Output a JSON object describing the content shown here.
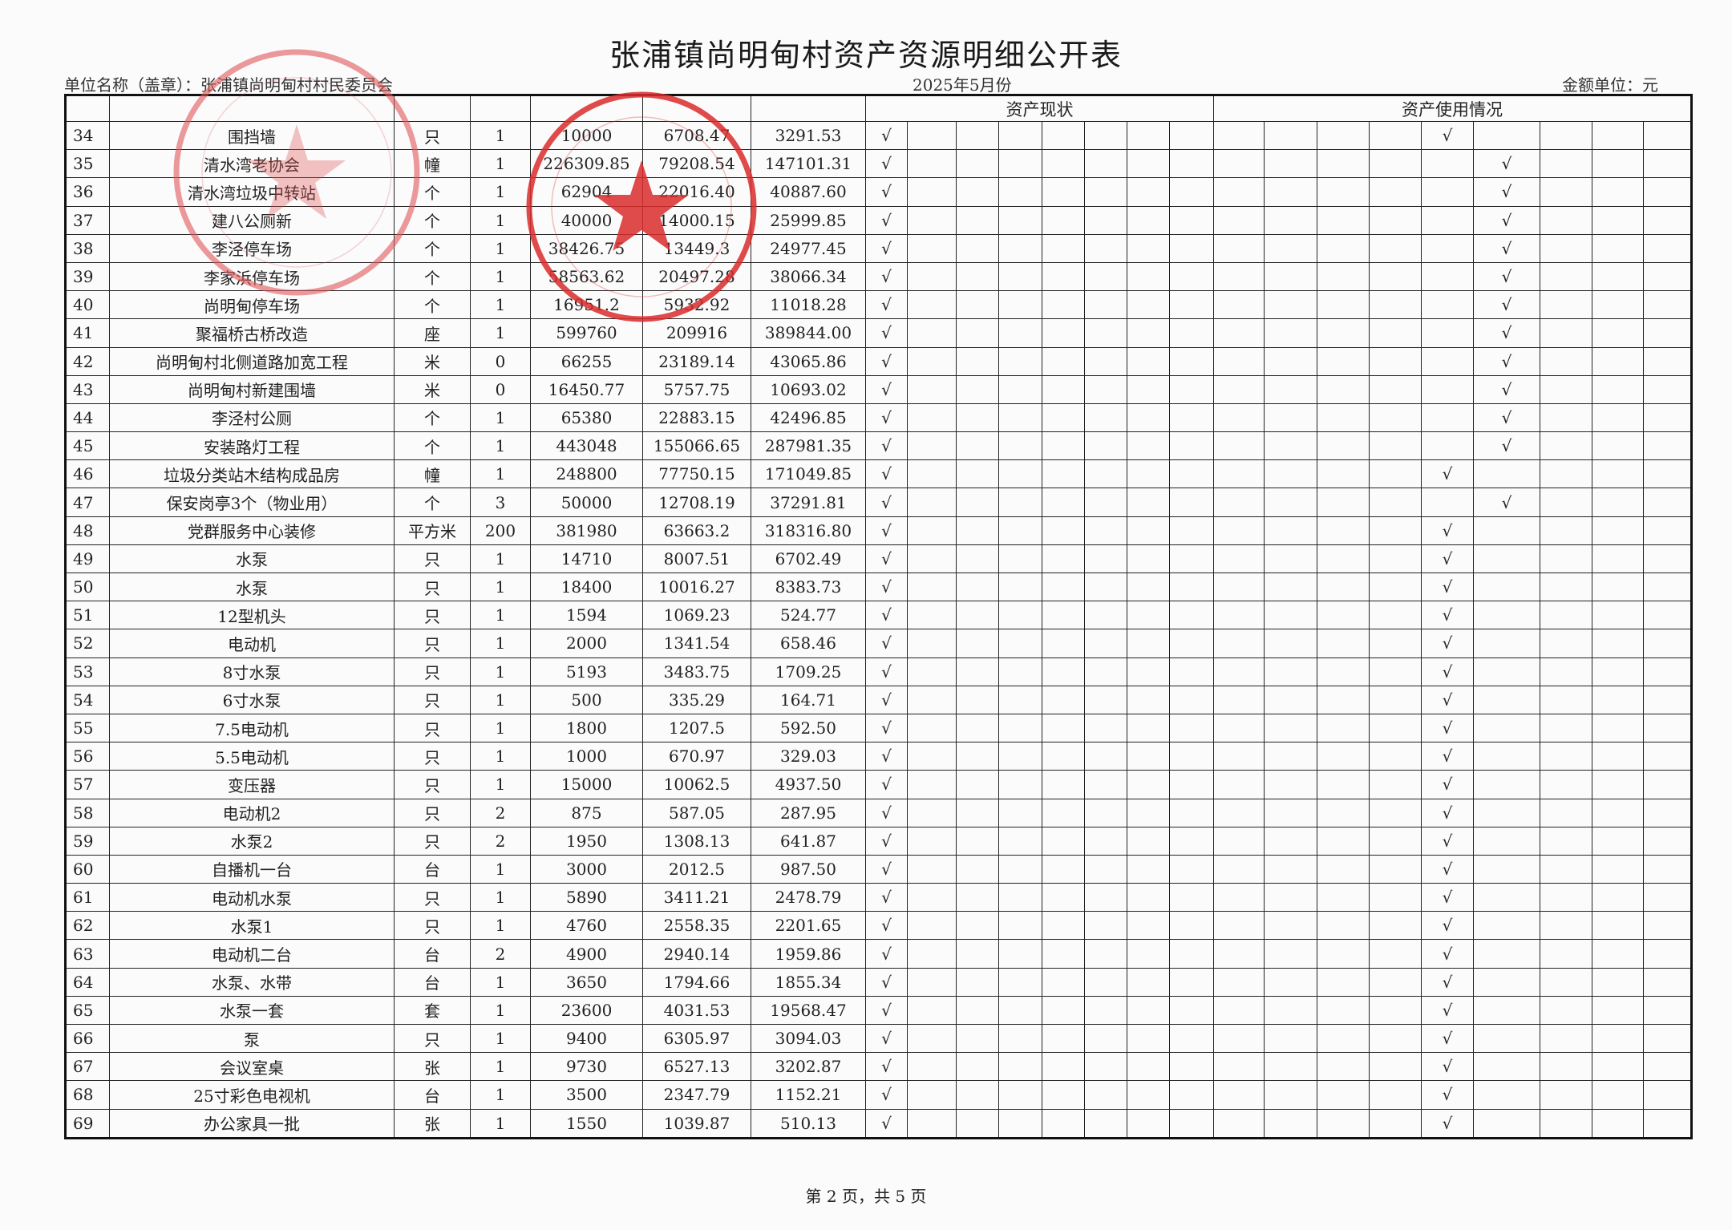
{
  "document": {
    "title": "张浦镇尚明甸村资产资源明细公开表",
    "unit_label": "单位名称（盖章）：张浦镇尚明甸村村民委员会",
    "period": "2025年5月份",
    "currency_unit": "金额单位：元",
    "footer": "第 2 页，共 5 页"
  },
  "table": {
    "group_headers": {
      "status": "资产现状",
      "usage": "资产使用情况"
    },
    "check_mark": "√",
    "status_columns": 8,
    "usage_columns": 9,
    "rows": [
      {
        "no": "34",
        "name": "围挡墙",
        "unit": "只",
        "qty": "1",
        "original": "10000",
        "depreciation": "6708.47",
        "net": "3291.53",
        "status_col": 0,
        "usage_col": 4
      },
      {
        "no": "35",
        "name": "清水湾老协会",
        "unit": "幢",
        "qty": "1",
        "original": "226309.85",
        "depreciation": "79208.54",
        "net": "147101.31",
        "status_col": 0,
        "usage_col": 5
      },
      {
        "no": "36",
        "name": "清水湾垃圾中转站",
        "unit": "个",
        "qty": "1",
        "original": "62904",
        "depreciation": "22016.40",
        "net": "40887.60",
        "status_col": 0,
        "usage_col": 5
      },
      {
        "no": "37",
        "name": "建八公厕新",
        "unit": "个",
        "qty": "1",
        "original": "40000",
        "depreciation": "14000.15",
        "net": "25999.85",
        "status_col": 0,
        "usage_col": 5
      },
      {
        "no": "38",
        "name": "李泾停车场",
        "unit": "个",
        "qty": "1",
        "original": "38426.75",
        "depreciation": "13449.3",
        "net": "24977.45",
        "status_col": 0,
        "usage_col": 5
      },
      {
        "no": "39",
        "name": "李家浜停车场",
        "unit": "个",
        "qty": "1",
        "original": "58563.62",
        "depreciation": "20497.28",
        "net": "38066.34",
        "status_col": 0,
        "usage_col": 5
      },
      {
        "no": "40",
        "name": "尚明甸停车场",
        "unit": "个",
        "qty": "1",
        "original": "16951.2",
        "depreciation": "5932.92",
        "net": "11018.28",
        "status_col": 0,
        "usage_col": 5
      },
      {
        "no": "41",
        "name": "聚福桥古桥改造",
        "unit": "座",
        "qty": "1",
        "original": "599760",
        "depreciation": "209916",
        "net": "389844.00",
        "status_col": 0,
        "usage_col": 5
      },
      {
        "no": "42",
        "name": "尚明甸村北侧道路加宽工程",
        "unit": "米",
        "qty": "0",
        "original": "66255",
        "depreciation": "23189.14",
        "net": "43065.86",
        "status_col": 0,
        "usage_col": 5
      },
      {
        "no": "43",
        "name": "尚明甸村新建围墙",
        "unit": "米",
        "qty": "0",
        "original": "16450.77",
        "depreciation": "5757.75",
        "net": "10693.02",
        "status_col": 0,
        "usage_col": 5
      },
      {
        "no": "44",
        "name": "李泾村公厕",
        "unit": "个",
        "qty": "1",
        "original": "65380",
        "depreciation": "22883.15",
        "net": "42496.85",
        "status_col": 0,
        "usage_col": 5
      },
      {
        "no": "45",
        "name": "安装路灯工程",
        "unit": "个",
        "qty": "1",
        "original": "443048",
        "depreciation": "155066.65",
        "net": "287981.35",
        "status_col": 0,
        "usage_col": 5
      },
      {
        "no": "46",
        "name": "垃圾分类站木结构成品房",
        "unit": "幢",
        "qty": "1",
        "original": "248800",
        "depreciation": "77750.15",
        "net": "171049.85",
        "status_col": 0,
        "usage_col": 4
      },
      {
        "no": "47",
        "name": "保安岗亭3个（物业用）",
        "unit": "个",
        "qty": "3",
        "original": "50000",
        "depreciation": "12708.19",
        "net": "37291.81",
        "status_col": 0,
        "usage_col": 5
      },
      {
        "no": "48",
        "name": "党群服务中心装修",
        "unit": "平方米",
        "qty": "200",
        "original": "381980",
        "depreciation": "63663.2",
        "net": "318316.80",
        "status_col": 0,
        "usage_col": 4
      },
      {
        "no": "49",
        "name": "水泵",
        "unit": "只",
        "qty": "1",
        "original": "14710",
        "depreciation": "8007.51",
        "net": "6702.49",
        "status_col": 0,
        "usage_col": 4
      },
      {
        "no": "50",
        "name": "水泵",
        "unit": "只",
        "qty": "1",
        "original": "18400",
        "depreciation": "10016.27",
        "net": "8383.73",
        "status_col": 0,
        "usage_col": 4
      },
      {
        "no": "51",
        "name": "12型机头",
        "unit": "只",
        "qty": "1",
        "original": "1594",
        "depreciation": "1069.23",
        "net": "524.77",
        "status_col": 0,
        "usage_col": 4
      },
      {
        "no": "52",
        "name": "电动机",
        "unit": "只",
        "qty": "1",
        "original": "2000",
        "depreciation": "1341.54",
        "net": "658.46",
        "status_col": 0,
        "usage_col": 4
      },
      {
        "no": "53",
        "name": "8寸水泵",
        "unit": "只",
        "qty": "1",
        "original": "5193",
        "depreciation": "3483.75",
        "net": "1709.25",
        "status_col": 0,
        "usage_col": 4
      },
      {
        "no": "54",
        "name": "6寸水泵",
        "unit": "只",
        "qty": "1",
        "original": "500",
        "depreciation": "335.29",
        "net": "164.71",
        "status_col": 0,
        "usage_col": 4
      },
      {
        "no": "55",
        "name": "7.5电动机",
        "unit": "只",
        "qty": "1",
        "original": "1800",
        "depreciation": "1207.5",
        "net": "592.50",
        "status_col": 0,
        "usage_col": 4
      },
      {
        "no": "56",
        "name": "5.5电动机",
        "unit": "只",
        "qty": "1",
        "original": "1000",
        "depreciation": "670.97",
        "net": "329.03",
        "status_col": 0,
        "usage_col": 4
      },
      {
        "no": "57",
        "name": "变压器",
        "unit": "只",
        "qty": "1",
        "original": "15000",
        "depreciation": "10062.5",
        "net": "4937.50",
        "status_col": 0,
        "usage_col": 4
      },
      {
        "no": "58",
        "name": "电动机2",
        "unit": "只",
        "qty": "2",
        "original": "875",
        "depreciation": "587.05",
        "net": "287.95",
        "status_col": 0,
        "usage_col": 4
      },
      {
        "no": "59",
        "name": "水泵2",
        "unit": "只",
        "qty": "2",
        "original": "1950",
        "depreciation": "1308.13",
        "net": "641.87",
        "status_col": 0,
        "usage_col": 4
      },
      {
        "no": "60",
        "name": "自播机一台",
        "unit": "台",
        "qty": "1",
        "original": "3000",
        "depreciation": "2012.5",
        "net": "987.50",
        "status_col": 0,
        "usage_col": 4
      },
      {
        "no": "61",
        "name": "电动机水泵",
        "unit": "只",
        "qty": "1",
        "original": "5890",
        "depreciation": "3411.21",
        "net": "2478.79",
        "status_col": 0,
        "usage_col": 4
      },
      {
        "no": "62",
        "name": "水泵1",
        "unit": "只",
        "qty": "1",
        "original": "4760",
        "depreciation": "2558.35",
        "net": "2201.65",
        "status_col": 0,
        "usage_col": 4
      },
      {
        "no": "63",
        "name": "电动机二台",
        "unit": "台",
        "qty": "2",
        "original": "4900",
        "depreciation": "2940.14",
        "net": "1959.86",
        "status_col": 0,
        "usage_col": 4
      },
      {
        "no": "64",
        "name": "水泵、水带",
        "unit": "台",
        "qty": "1",
        "original": "3650",
        "depreciation": "1794.66",
        "net": "1855.34",
        "status_col": 0,
        "usage_col": 4
      },
      {
        "no": "65",
        "name": "水泵一套",
        "unit": "套",
        "qty": "1",
        "original": "23600",
        "depreciation": "4031.53",
        "net": "19568.47",
        "status_col": 0,
        "usage_col": 4
      },
      {
        "no": "66",
        "name": "泵",
        "unit": "只",
        "qty": "1",
        "original": "9400",
        "depreciation": "6305.97",
        "net": "3094.03",
        "status_col": 0,
        "usage_col": 4
      },
      {
        "no": "67",
        "name": "会议室桌",
        "unit": "张",
        "qty": "1",
        "original": "9730",
        "depreciation": "6527.13",
        "net": "3202.87",
        "status_col": 0,
        "usage_col": 4
      },
      {
        "no": "68",
        "name": "25寸彩色电视机",
        "unit": "台",
        "qty": "1",
        "original": "3500",
        "depreciation": "2347.79",
        "net": "1152.21",
        "status_col": 0,
        "usage_col": 4
      },
      {
        "no": "69",
        "name": "办公家具一批",
        "unit": "张",
        "qty": "1",
        "original": "1550",
        "depreciation": "1039.87",
        "net": "510.13",
        "status_col": 0,
        "usage_col": 4
      }
    ]
  },
  "stamp_color": "#d92a2a"
}
